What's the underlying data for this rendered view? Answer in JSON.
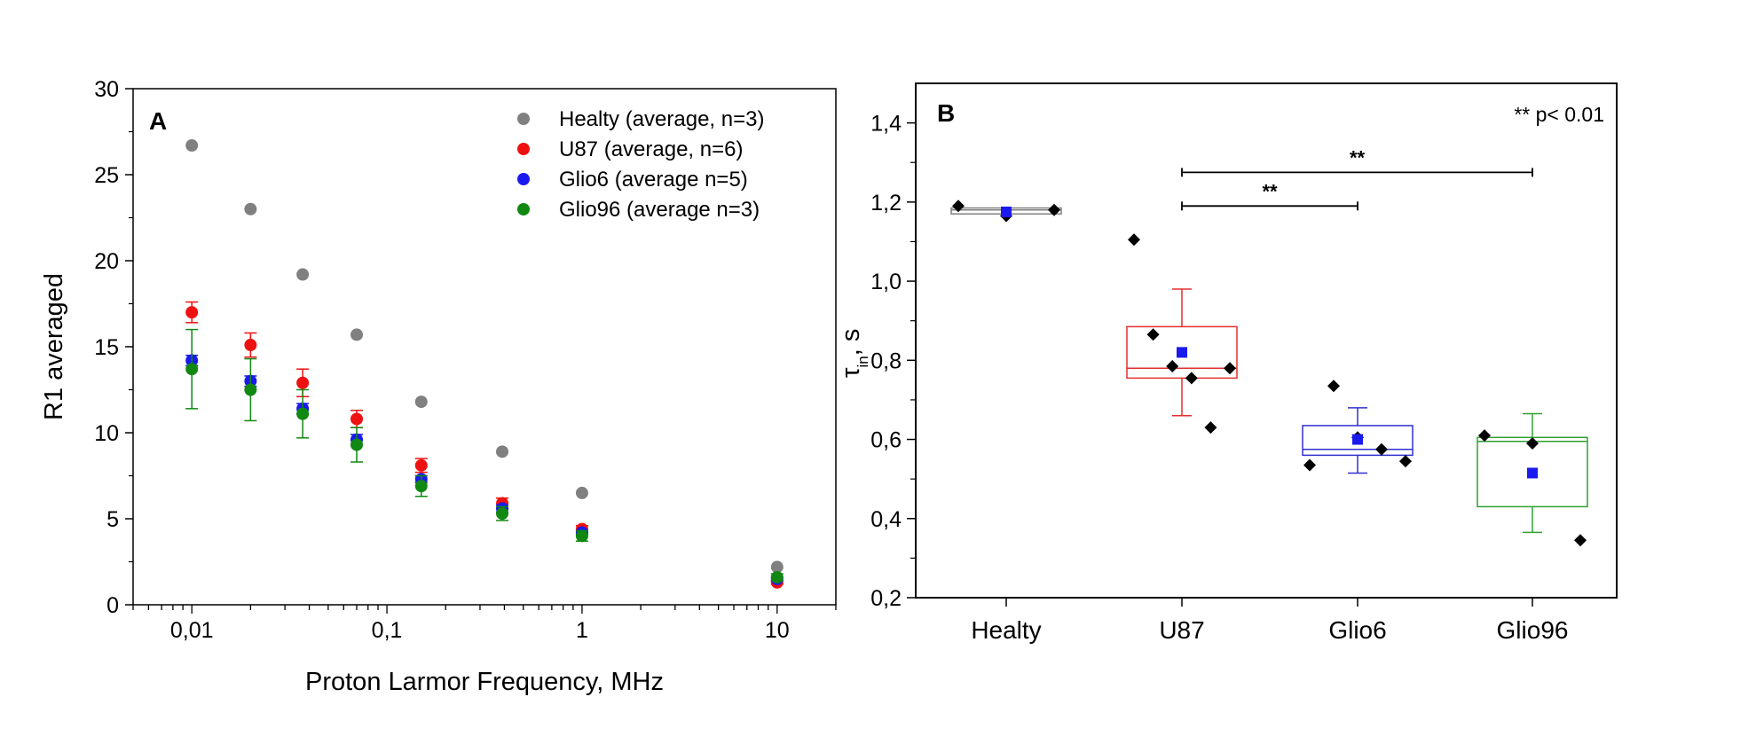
{
  "chart_data": [
    {
      "type": "scatter",
      "panel_label": "A",
      "xlabel": "Proton Larmor Frequency, MHz",
      "ylabel": "R1 averaged",
      "xscale": "log",
      "xlim": [
        0.005,
        20
      ],
      "ylim": [
        0,
        30
      ],
      "xticks": [
        0.01,
        0.1,
        1,
        10
      ],
      "xtick_labels": [
        "0,01",
        "0,1",
        "1",
        "10"
      ],
      "yticks": [
        0,
        5,
        10,
        15,
        20,
        25,
        30
      ],
      "ytick_labels": [
        "0",
        "5",
        "10",
        "15",
        "20",
        "25",
        "30"
      ],
      "legend_position": "top-right",
      "x": [
        0.01,
        0.02,
        0.037,
        0.07,
        0.15,
        0.39,
        1,
        10
      ],
      "series": [
        {
          "name": "Healty (average, n=3)",
          "color": "#808080",
          "values": [
            26.7,
            23.0,
            19.2,
            15.7,
            11.8,
            8.9,
            6.5,
            2.2
          ],
          "errors": [
            0,
            0,
            0,
            0,
            0,
            0,
            0,
            0
          ]
        },
        {
          "name": "U87 (average, n=6)",
          "color": "#ee1111",
          "values": [
            17.0,
            15.1,
            12.9,
            10.8,
            8.1,
            5.9,
            4.4,
            1.3
          ],
          "errors": [
            0.6,
            0.7,
            0.8,
            0.5,
            0.4,
            0.3,
            0.2,
            0.1
          ]
        },
        {
          "name": "Glio6 (average n=5)",
          "color": "#1a1aee",
          "values": [
            14.2,
            13.0,
            11.4,
            9.6,
            7.3,
            5.6,
            4.2,
            1.5
          ],
          "errors": [
            0.3,
            0.3,
            0.3,
            0.3,
            0.2,
            0.2,
            0.1,
            0.1
          ]
        },
        {
          "name": "Glio96 (average n=3)",
          "color": "#118811",
          "values": [
            13.7,
            12.5,
            11.1,
            9.3,
            6.9,
            5.3,
            4.0,
            1.6
          ],
          "errors": [
            2.3,
            1.8,
            1.4,
            1.0,
            0.6,
            0.4,
            0.3,
            0.2
          ]
        }
      ]
    },
    {
      "type": "box",
      "panel_label": "B",
      "ylabel": "τin, s",
      "ylim": [
        0.2,
        1.5
      ],
      "yticks": [
        0.2,
        0.4,
        0.6,
        0.8,
        1.0,
        1.2,
        1.4
      ],
      "ytick_labels": [
        "0,2",
        "0,4",
        "0,6",
        "0,8",
        "1,0",
        "1,2",
        "1,4"
      ],
      "annotation": "** p< 0.01",
      "categories": [
        "Healty",
        "U87",
        "Glio6",
        "Glio96"
      ],
      "groups": [
        {
          "name": "Healty",
          "color": "#808080",
          "q1": 1.17,
          "median": 1.18,
          "q3": 1.185,
          "mean": 1.175,
          "whisker_low": null,
          "whisker_high": null,
          "points": [
            1.19,
            1.165,
            1.18
          ]
        },
        {
          "name": "U87",
          "color": "#e03030",
          "q1": 0.755,
          "median": 0.78,
          "q3": 0.885,
          "mean": 0.82,
          "whisker_low": 0.66,
          "whisker_high": 0.98,
          "points": [
            1.105,
            0.865,
            0.785,
            0.755,
            0.63,
            0.78
          ]
        },
        {
          "name": "Glio6",
          "color": "#3030d0",
          "q1": 0.56,
          "median": 0.575,
          "q3": 0.635,
          "mean": 0.6,
          "whisker_low": 0.515,
          "whisker_high": 0.68,
          "points": [
            0.535,
            0.735,
            0.605,
            0.575,
            0.545
          ]
        },
        {
          "name": "Glio96",
          "color": "#30a030",
          "q1": 0.43,
          "median": 0.595,
          "q3": 0.605,
          "mean": 0.515,
          "whisker_low": 0.365,
          "whisker_high": 0.665,
          "points": [
            0.61,
            0.59,
            0.345
          ]
        }
      ],
      "comparisons": [
        {
          "from": "U87",
          "to": "Glio96",
          "level": 1.275,
          "label": "**"
        },
        {
          "from": "U87",
          "to": "Glio6",
          "level": 1.19,
          "label": "**"
        }
      ]
    }
  ]
}
